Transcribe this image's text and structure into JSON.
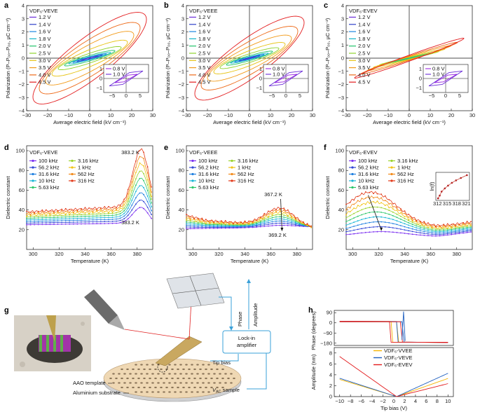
{
  "panel_letters": [
    "a",
    "b",
    "c",
    "d",
    "e",
    "f",
    "g",
    "h"
  ],
  "colors": {
    "volt": [
      "#6a2bd8",
      "#2e3fc9",
      "#1b86e0",
      "#13b5c8",
      "#20c36a",
      "#8ed12a",
      "#e6c313",
      "#f29a17",
      "#ee6a18",
      "#e31a1c"
    ],
    "freq": [
      "#7b2ff0",
      "#3246d6",
      "#1e7fe0",
      "#18b6d6",
      "#2cc76a",
      "#9ad32c",
      "#f1c416",
      "#f28a1b",
      "#e23b1b"
    ],
    "h": [
      "#f5b400",
      "#1f5fbf",
      "#e31a1c"
    ]
  },
  "pe": {
    "xlabel": "Average electric field (kV cm⁻¹)",
    "ylabel": "Polarization (P–P₀₀–P₀₀, µC cm⁻²)",
    "xticks": [
      "−30",
      "−20",
      "−10",
      "0",
      "10",
      "20",
      "30"
    ],
    "yticks": [
      "4",
      "3",
      "2",
      "1",
      "0",
      "−1",
      "−2",
      "−3",
      "−4"
    ],
    "inset_xticks": [
      "−5",
      "0",
      "5"
    ],
    "inset_yticks": [
      "1",
      "0",
      "−1"
    ],
    "voltages": [
      "1.2 V",
      "1.4 V",
      "1.6 V",
      "1.8 V",
      "2.0 V",
      "2.5 V",
      "3.0 V",
      "3.5 V",
      "4.0 V",
      "4.5 V"
    ],
    "inset_voltages": [
      "0.8 V",
      "1.0 V"
    ],
    "panels": [
      {
        "letter": "a",
        "title": "VDF₆-VEVE",
        "max_field": [
          4,
          6,
          8,
          10,
          12,
          15,
          18,
          21,
          24,
          27
        ],
        "max_pol": [
          0.18,
          0.25,
          0.32,
          0.42,
          0.55,
          0.8,
          1.2,
          1.75,
          2.3,
          2.95
        ],
        "loop": [
          0.35,
          0.4,
          0.45,
          0.55,
          0.7,
          0.85,
          1.0,
          1.1,
          1.15,
          1.15
        ]
      },
      {
        "letter": "b",
        "title": "VDF₆-VEEE",
        "max_field": [
          3,
          5,
          7,
          9,
          11,
          14,
          17,
          20,
          23,
          26
        ],
        "max_pol": [
          0.12,
          0.2,
          0.28,
          0.37,
          0.5,
          0.72,
          1.05,
          1.5,
          2.05,
          2.7
        ],
        "loop": [
          0.35,
          0.4,
          0.45,
          0.55,
          0.7,
          0.85,
          1.0,
          1.1,
          1.15,
          1.15
        ]
      },
      {
        "letter": "c",
        "title": "VDF₆-EVEV",
        "max_field": [
          3,
          5,
          7,
          9,
          11,
          14,
          17,
          20,
          23,
          26
        ],
        "max_pol": [
          0.1,
          0.16,
          0.22,
          0.28,
          0.36,
          0.5,
          0.7,
          0.95,
          1.2,
          1.5
        ],
        "loop": [
          0.12,
          0.14,
          0.16,
          0.18,
          0.2,
          0.22,
          0.24,
          0.25,
          0.26,
          0.28
        ]
      }
    ]
  },
  "diel": {
    "xlabel": "Temperature (K)",
    "ylabel": "Dielectric constant",
    "xticks": [
      "300",
      "320",
      "340",
      "360",
      "380"
    ],
    "yticks": [
      "100",
      "80",
      "60",
      "40",
      "20"
    ],
    "freqs": [
      "100 kHz",
      "56.2 kHz",
      "31.6 kHz",
      "10 kHz",
      "5.63 kHz",
      "3.16 kHz",
      "1 kHz",
      "562 Hz",
      "316 Hz"
    ],
    "panels": [
      {
        "letter": "d",
        "title": "VDF₆-VEVE",
        "annotations": [
          "383.2 K",
          "383.2 K"
        ]
      },
      {
        "letter": "e",
        "title": "VDF₆-VEEE",
        "annotations": [
          "367.2 K",
          "369.2 K"
        ]
      },
      {
        "letter": "f",
        "title": "VDF₆-EVEV",
        "annotations": [],
        "inset": {
          "xlabel": "",
          "xticks": [
            "312",
            "315",
            "318",
            "321"
          ],
          "ylabel": "ln(f)",
          "points": [
            [
              312.2,
              5.7
            ],
            [
              312.7,
              6.4
            ],
            [
              313.3,
              7.4
            ],
            [
              314.3,
              8.2
            ],
            [
              315.3,
              8.9
            ],
            [
              316.5,
              9.6
            ],
            [
              317.8,
              10.2
            ],
            [
              319.3,
              10.8
            ],
            [
              321.2,
              11.5
            ]
          ]
        }
      }
    ],
    "chart_data": [
      {
        "type": "line",
        "title": "VDF₆-VEVE",
        "xlabel": "Temperature (K)",
        "ylabel": "Dielectric constant",
        "xlim": [
          295,
          392
        ],
        "ylim": [
          0,
          100
        ],
        "series": [
          {
            "name": "100 kHz",
            "x": [
              295,
              320,
              350,
              370,
              383.2,
              392
            ],
            "y": [
              26,
              25,
              26,
              31,
              40,
              31
            ]
          },
          {
            "name": "316 Hz",
            "x": [
              295,
              320,
              350,
              370,
              383.2,
              392
            ],
            "y": [
              38,
              37,
              41,
              56,
              90,
              70
            ]
          }
        ]
      },
      {
        "type": "line",
        "title": "VDF₆-VEEE",
        "xlabel": "Temperature (K)",
        "ylabel": "Dielectric constant",
        "xlim": [
          295,
          392
        ],
        "ylim": [
          0,
          100
        ],
        "series": [
          {
            "name": "100 kHz",
            "x": [
              295,
              330,
              360,
              369.2,
              392
            ],
            "y": [
              21,
              20,
              21,
              22,
              21
            ]
          },
          {
            "name": "316 Hz",
            "x": [
              295,
              330,
              360,
              367.2,
              392
            ],
            "y": [
              31,
              27,
              35,
              45,
              29
            ]
          }
        ]
      },
      {
        "type": "line",
        "title": "VDF₆-EVEV",
        "xlabel": "Temperature (K)",
        "ylabel": "Dielectric constant",
        "xlim": [
          295,
          392
        ],
        "ylim": [
          0,
          100
        ],
        "series": [
          {
            "name": "100 kHz",
            "x": [
              295,
              320,
              345,
              360,
              392
            ],
            "y": [
              11,
              17,
              13,
              12,
              18
            ]
          },
          {
            "name": "316 Hz",
            "x": [
              295,
              314,
              340,
              360,
              392
            ],
            "y": [
              39,
              57,
              44,
              25,
              25
            ]
          }
        ]
      }
    ]
  },
  "schematic": {
    "lockin": "Lock-in\namplifier",
    "lockin_l1": "Lock-in",
    "lockin_l2": "amplifier",
    "phase": "Phase",
    "amplitude": "Amplitude",
    "tip_bias": "Tip bias",
    "aao": "AAO template",
    "al": "Aluminium substrate",
    "vac": "V",
    "vac_sub": "AC",
    "vac_rest": " sample"
  },
  "pfm": {
    "phase_ylabel": "Phase (degrees)",
    "phase_yticks": [
      "90",
      "0",
      "−90",
      "−180"
    ],
    "amp_ylabel": "Amplitude (nm)",
    "amp_yticks": [
      "8",
      "6",
      "4",
      "2",
      "0"
    ],
    "xlabel": "Tip bias (V)",
    "xticks": [
      "−10",
      "−8",
      "−6",
      "−4",
      "−2",
      "0",
      "2",
      "4",
      "6",
      "8",
      "10"
    ],
    "legend": [
      "VDF₆-VVEE",
      "VDF₆-VEVE",
      "VDF₆-EVEV"
    ]
  }
}
